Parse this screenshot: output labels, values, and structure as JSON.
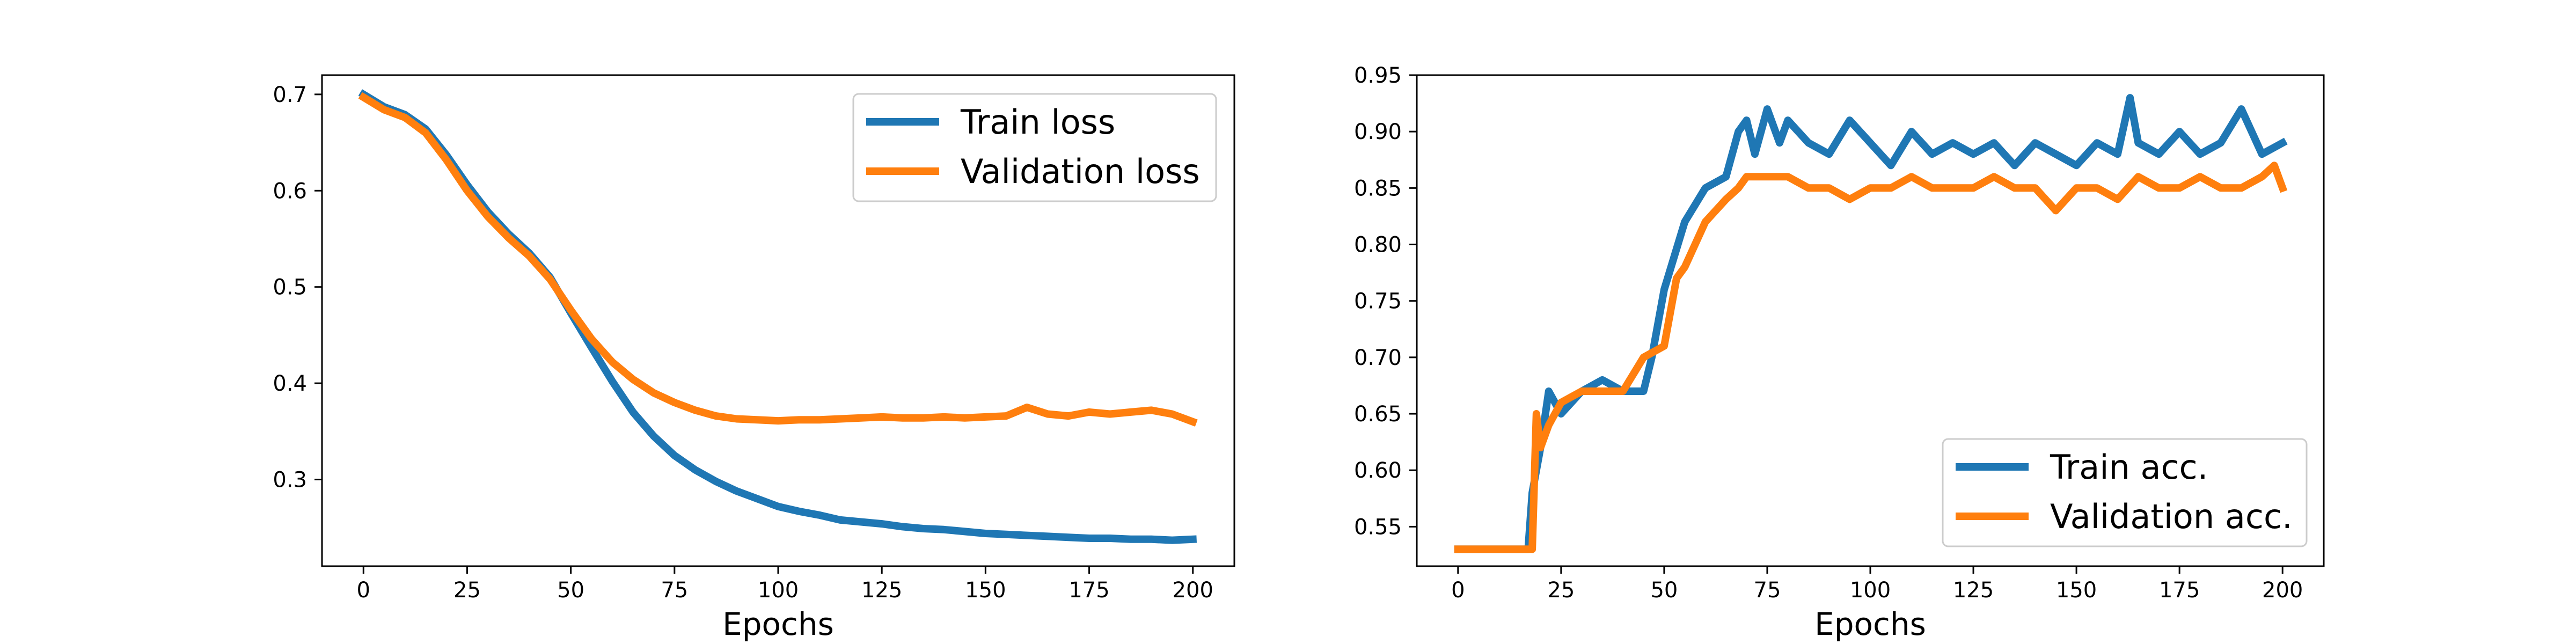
{
  "colors": {
    "train": "#1f77b4",
    "validation": "#ff7f0e"
  },
  "chart_data": [
    {
      "type": "line",
      "xlabel": "Epochs",
      "ylabel": "",
      "title": "",
      "xlim": [
        -10,
        210
      ],
      "ylim": [
        0.21,
        0.72
      ],
      "xticks": [
        0,
        25,
        50,
        75,
        100,
        125,
        150,
        175,
        200
      ],
      "yticks": [
        0.3,
        0.4,
        0.5,
        0.6,
        0.7
      ],
      "ytick_labels": [
        "0.3",
        "0.4",
        "0.5",
        "0.6",
        "0.7"
      ],
      "legend_position": "top-right",
      "grid": false,
      "series": [
        {
          "name": "Train loss",
          "x": [
            0,
            5,
            10,
            15,
            20,
            25,
            30,
            35,
            40,
            45,
            50,
            55,
            60,
            65,
            70,
            75,
            80,
            85,
            90,
            95,
            100,
            105,
            110,
            115,
            120,
            125,
            130,
            135,
            140,
            145,
            150,
            155,
            160,
            165,
            170,
            175,
            180,
            185,
            190,
            195,
            200
          ],
          "values": [
            0.7,
            0.687,
            0.679,
            0.664,
            0.637,
            0.606,
            0.578,
            0.555,
            0.535,
            0.51,
            0.473,
            0.437,
            0.402,
            0.37,
            0.345,
            0.325,
            0.31,
            0.298,
            0.288,
            0.28,
            0.272,
            0.267,
            0.263,
            0.258,
            0.256,
            0.254,
            0.251,
            0.249,
            0.248,
            0.246,
            0.244,
            0.243,
            0.242,
            0.241,
            0.24,
            0.239,
            0.239,
            0.238,
            0.238,
            0.237,
            0.238
          ]
        },
        {
          "name": "Validation loss",
          "x": [
            0,
            5,
            10,
            15,
            20,
            25,
            30,
            35,
            40,
            45,
            50,
            55,
            60,
            65,
            70,
            75,
            80,
            85,
            90,
            95,
            100,
            105,
            110,
            115,
            120,
            125,
            130,
            135,
            140,
            145,
            150,
            155,
            160,
            165,
            170,
            175,
            180,
            185,
            190,
            195,
            200
          ],
          "values": [
            0.697,
            0.684,
            0.676,
            0.66,
            0.632,
            0.6,
            0.573,
            0.551,
            0.532,
            0.508,
            0.476,
            0.446,
            0.422,
            0.404,
            0.39,
            0.38,
            0.372,
            0.366,
            0.363,
            0.362,
            0.361,
            0.362,
            0.362,
            0.363,
            0.364,
            0.365,
            0.364,
            0.364,
            0.365,
            0.364,
            0.365,
            0.366,
            0.375,
            0.368,
            0.366,
            0.37,
            0.368,
            0.37,
            0.372,
            0.368,
            0.36
          ]
        }
      ]
    },
    {
      "type": "line",
      "xlabel": "Epochs",
      "ylabel": "",
      "title": "",
      "xlim": [
        -10,
        210
      ],
      "ylim": [
        0.515,
        0.95
      ],
      "xticks": [
        0,
        25,
        50,
        75,
        100,
        125,
        150,
        175,
        200
      ],
      "yticks": [
        0.55,
        0.6,
        0.65,
        0.7,
        0.75,
        0.8,
        0.85,
        0.9,
        0.95
      ],
      "ytick_labels": [
        "0.55",
        "0.60",
        "0.65",
        "0.70",
        "0.75",
        "0.80",
        "0.85",
        "0.90",
        "0.95"
      ],
      "legend_position": "bottom-right",
      "grid": false,
      "series": [
        {
          "name": "Train acc.",
          "x": [
            0,
            17,
            18,
            20,
            22,
            25,
            30,
            35,
            40,
            45,
            47,
            50,
            55,
            60,
            65,
            68,
            70,
            72,
            75,
            78,
            80,
            85,
            90,
            95,
            100,
            105,
            110,
            115,
            120,
            125,
            130,
            135,
            140,
            145,
            150,
            155,
            160,
            163,
            165,
            170,
            175,
            180,
            185,
            190,
            195,
            200
          ],
          "values": [
            0.53,
            0.53,
            0.58,
            0.62,
            0.67,
            0.65,
            0.67,
            0.68,
            0.67,
            0.67,
            0.7,
            0.76,
            0.82,
            0.85,
            0.86,
            0.9,
            0.91,
            0.88,
            0.92,
            0.89,
            0.91,
            0.89,
            0.88,
            0.91,
            0.89,
            0.87,
            0.9,
            0.88,
            0.89,
            0.88,
            0.89,
            0.87,
            0.89,
            0.88,
            0.87,
            0.89,
            0.88,
            0.93,
            0.89,
            0.88,
            0.9,
            0.88,
            0.89,
            0.92,
            0.88,
            0.89
          ]
        },
        {
          "name": "Validation acc.",
          "x": [
            0,
            18,
            19,
            20,
            22,
            25,
            30,
            35,
            40,
            45,
            50,
            53,
            55,
            60,
            65,
            68,
            70,
            75,
            80,
            85,
            90,
            95,
            100,
            105,
            110,
            115,
            120,
            125,
            130,
            135,
            140,
            145,
            150,
            155,
            160,
            165,
            170,
            175,
            180,
            185,
            190,
            195,
            198,
            200
          ],
          "values": [
            0.53,
            0.53,
            0.65,
            0.62,
            0.64,
            0.66,
            0.67,
            0.67,
            0.67,
            0.7,
            0.71,
            0.77,
            0.78,
            0.82,
            0.84,
            0.85,
            0.86,
            0.86,
            0.86,
            0.85,
            0.85,
            0.84,
            0.85,
            0.85,
            0.86,
            0.85,
            0.85,
            0.85,
            0.86,
            0.85,
            0.85,
            0.83,
            0.85,
            0.85,
            0.84,
            0.86,
            0.85,
            0.85,
            0.86,
            0.85,
            0.85,
            0.86,
            0.87,
            0.85
          ]
        }
      ]
    }
  ]
}
